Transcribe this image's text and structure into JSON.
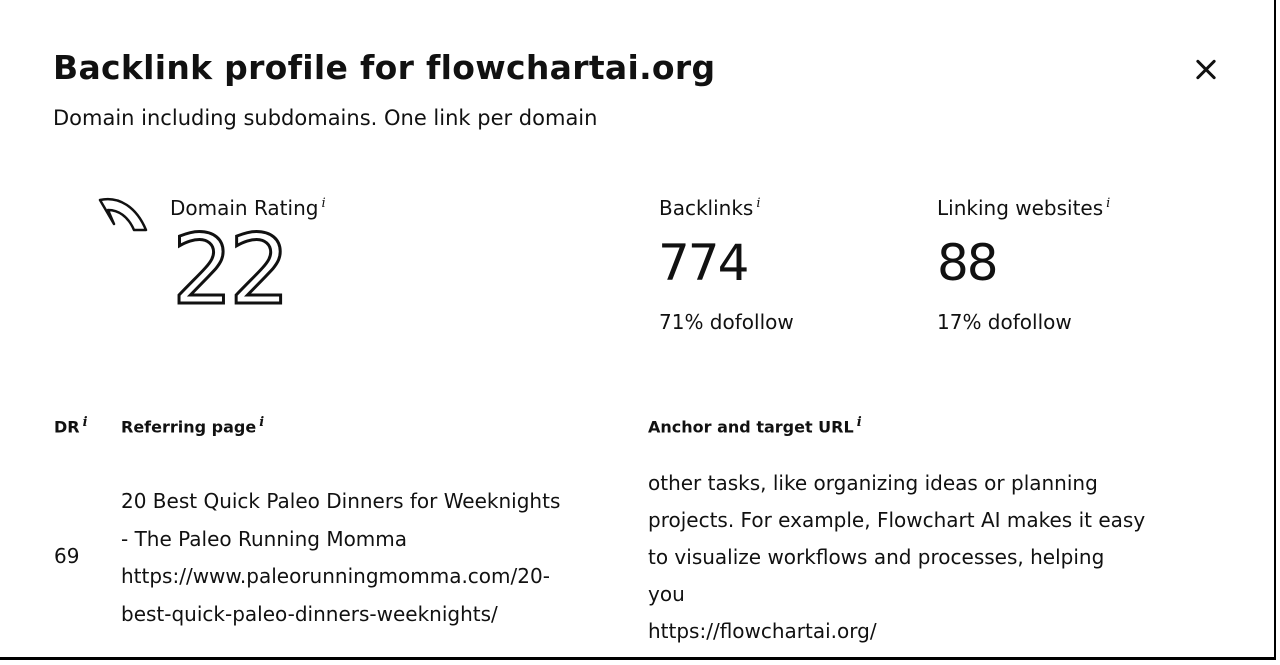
{
  "header": {
    "title": "Backlink profile for flowchartai.org",
    "subtitle": "Domain including subdomains. One link per domain",
    "close_icon": "close-icon"
  },
  "metrics": {
    "domain_rating": {
      "label": "Domain Rating",
      "value": "22",
      "icon": "gauge-icon"
    },
    "backlinks": {
      "label": "Backlinks",
      "value": "774",
      "sub": "71% dofollow"
    },
    "linking_websites": {
      "label": "Linking websites",
      "value": "88",
      "sub": "17% dofollow"
    },
    "info_marker": "i"
  },
  "table": {
    "columns": {
      "dr": "DR",
      "referring_page": "Referring page",
      "anchor": "Anchor and target URL"
    },
    "rows": [
      {
        "dr": "69",
        "referring_title_lines": [
          "20 Best Quick Paleo Dinners for Weeknights",
          "- The Paleo Running Momma"
        ],
        "referring_url_lines": [
          "https://www.paleorunningmomma.com/20-",
          "best-quick-paleo-dinners-weeknights/"
        ],
        "anchor_lines": [
          "other tasks, like organizing ideas or planning",
          "projects. For example, Flowchart AI makes it easy",
          "to visualize workflows and processes, helping",
          "you"
        ],
        "target_url": "https://flowchartai.org/"
      }
    ]
  }
}
